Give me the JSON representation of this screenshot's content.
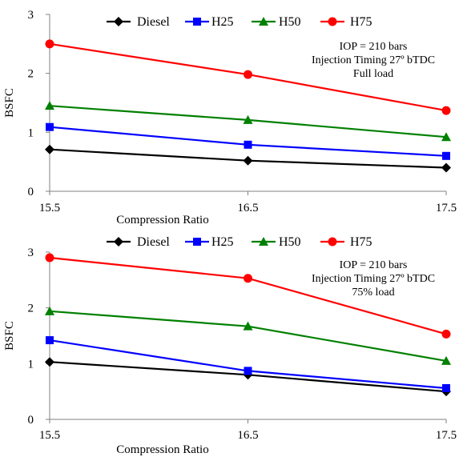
{
  "chart_data": [
    {
      "type": "line",
      "x": [
        15.5,
        16.5,
        17.5
      ],
      "xlabel": "Compression Ratio",
      "ylabel": "BSFC",
      "xticks": [
        "15.5",
        "16.5",
        "17.5"
      ],
      "yticks": [
        "0",
        "1",
        "2",
        "3"
      ],
      "ylim": [
        0,
        3
      ],
      "grid": false,
      "legend_position": "top",
      "annotations": [
        "IOP = 210 bars",
        "Injection Timing 27º bTDC",
        "Full load"
      ],
      "series": [
        {
          "name": "Diesel",
          "values": [
            0.71,
            0.52,
            0.4
          ],
          "color": "#000000",
          "marker": "diamond"
        },
        {
          "name": "H25",
          "values": [
            1.09,
            0.79,
            0.6
          ],
          "color": "#0000ff",
          "marker": "square"
        },
        {
          "name": "H50",
          "values": [
            1.45,
            1.21,
            0.92
          ],
          "color": "#008000",
          "marker": "triangle"
        },
        {
          "name": "H75",
          "values": [
            2.5,
            1.98,
            1.37
          ],
          "color": "#ff0000",
          "marker": "circle"
        }
      ]
    },
    {
      "type": "line",
      "x": [
        15.5,
        16.5,
        17.5
      ],
      "xlabel": "Compression Ratio",
      "ylabel": "BSFC",
      "xticks": [
        "15.5",
        "16.5",
        "17.5"
      ],
      "yticks": [
        "0",
        "1",
        "2",
        "3"
      ],
      "ylim": [
        0,
        3
      ],
      "grid": false,
      "legend_position": "top",
      "annotations": [
        "IOP = 210 bars",
        "Injection Timing 27º bTDC",
        "75%  load"
      ],
      "series": [
        {
          "name": "Diesel",
          "values": [
            1.03,
            0.8,
            0.5
          ],
          "color": "#000000",
          "marker": "diamond"
        },
        {
          "name": "H25",
          "values": [
            1.42,
            0.87,
            0.56
          ],
          "color": "#0000ff",
          "marker": "square"
        },
        {
          "name": "H50",
          "values": [
            1.94,
            1.67,
            1.05
          ],
          "color": "#008000",
          "marker": "triangle"
        },
        {
          "name": "H75",
          "values": [
            2.9,
            2.53,
            1.53
          ],
          "color": "#ff0000",
          "marker": "circle"
        }
      ]
    }
  ]
}
